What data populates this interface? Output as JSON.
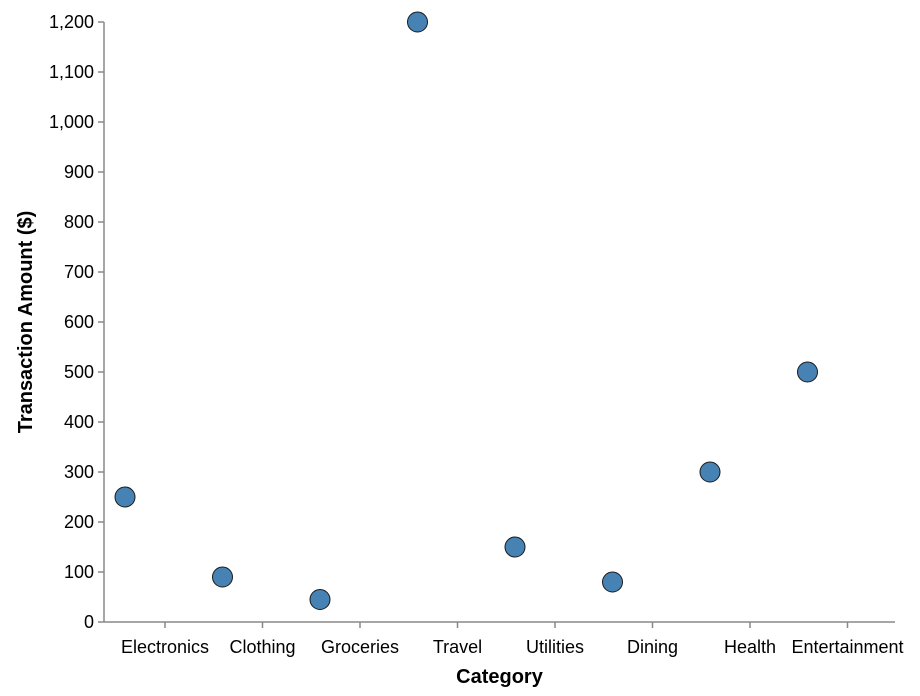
{
  "chart_data": {
    "type": "scatter",
    "title": "",
    "xlabel": "Category",
    "ylabel": "Transaction Amount ($)",
    "categories": [
      "Electronics",
      "Clothing",
      "Groceries",
      "Travel",
      "Utilities",
      "Dining",
      "Health",
      "Entertainment"
    ],
    "y_ticks": [
      "0",
      "100",
      "200",
      "300",
      "400",
      "500",
      "600",
      "700",
      "800",
      "900",
      "1,000",
      "1,100",
      "1,200"
    ],
    "ylim": [
      0,
      1200
    ],
    "grid": false,
    "series": [
      {
        "points": [
          {
            "category": "Electronics",
            "value": 250
          },
          {
            "category": "Clothing",
            "value": 90
          },
          {
            "category": "Groceries",
            "value": 45
          },
          {
            "category": "Travel",
            "value": 1200
          },
          {
            "category": "Utilities",
            "value": 150
          },
          {
            "category": "Dining",
            "value": 80
          },
          {
            "category": "Health",
            "value": 300
          },
          {
            "category": "Entertainment",
            "value": 500
          }
        ]
      }
    ],
    "colors": {
      "point_fill": "#4682b4",
      "point_stroke": "#1a1a1a",
      "axis": "#888888"
    }
  }
}
